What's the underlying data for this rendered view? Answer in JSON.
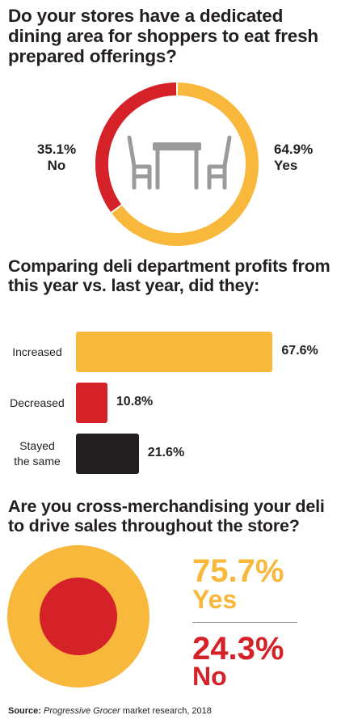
{
  "colors": {
    "yellow": "#f7b83b",
    "red": "#d52128",
    "black": "#231f20",
    "icon_gray": "#9b9b9b"
  },
  "icons": {
    "dining": "dining-table-chairs-icon"
  },
  "chart_data": [
    {
      "type": "pie",
      "title": "Do your stores have a dedicated dining area for shoppers to eat fresh prepared offerings?",
      "slices": [
        {
          "name": "Yes",
          "value": 64.9,
          "label": "64.9%",
          "color": "#f7b83b"
        },
        {
          "name": "No",
          "value": 35.1,
          "label": "35.1%",
          "color": "#d52128"
        }
      ]
    },
    {
      "type": "bar",
      "title": "Comparing deli department profits from this year vs. last year, did they:",
      "categories": [
        "Increased",
        "Decreased",
        "Stayed the same"
      ],
      "category_lines": [
        [
          "Increased"
        ],
        [
          "Decreased"
        ],
        [
          "Stayed",
          "the same"
        ]
      ],
      "values": [
        67.6,
        10.8,
        21.6
      ],
      "labels": [
        "67.6%",
        "10.8%",
        "21.6%"
      ],
      "colors": [
        "#f7b83b",
        "#d52128",
        "#231f20"
      ],
      "xlim": [
        0,
        70
      ]
    },
    {
      "type": "pie",
      "title": "Are you cross-merchandising your deli to drive sales throughout the store?",
      "slices": [
        {
          "name": "Yes",
          "value": 75.7,
          "label": "75.7%",
          "color": "#f7b83b"
        },
        {
          "name": "No",
          "value": 24.3,
          "label": "24.3%",
          "color": "#d52128"
        }
      ]
    }
  ],
  "source": {
    "label": "Source:",
    "publication": "Progressive Grocer",
    "rest": " market research, 2018"
  }
}
